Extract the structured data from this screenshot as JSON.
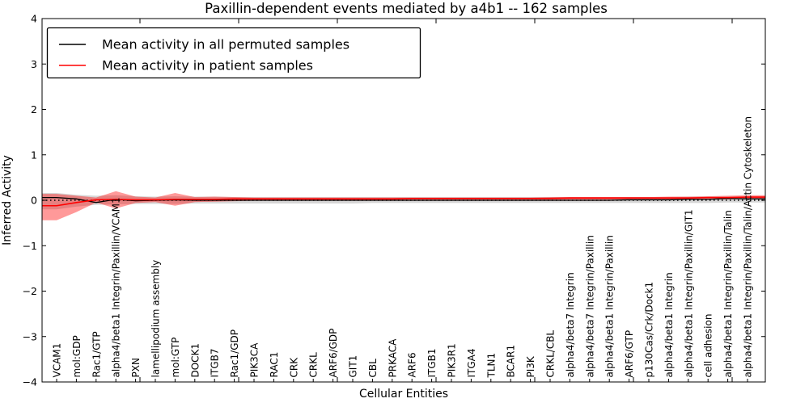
{
  "title": "Paxillin-dependent events mediated by a4b1 -- 162 samples",
  "axes": {
    "xlabel": "Cellular Entities",
    "ylabel": "Inferred Activity",
    "ytick_labels": [
      "4",
      "3",
      "2",
      "1",
      "0",
      "−1",
      "−2",
      "−3",
      "−4"
    ],
    "ytick_values": [
      4,
      3,
      2,
      1,
      0,
      -1,
      -2,
      -3,
      -4
    ]
  },
  "legend": {
    "entries": [
      {
        "label": "Mean activity in all permuted samples",
        "color": "#000000"
      },
      {
        "label": "Mean activity in patient samples",
        "color": "#ff0000"
      }
    ]
  },
  "colors": {
    "background": "#ffffff",
    "spine": "#000000",
    "permuted_line": "#000000",
    "patient_line": "#ff0000",
    "permuted_band": "rgba(0,0,0,0.16)",
    "patient_band": "rgba(255,0,0,0.40)",
    "zero_line": "#000000"
  },
  "chart_data": {
    "type": "line",
    "title": "Paxillin-dependent events mediated by a4b1 -- 162 samples",
    "xlabel": "Cellular Entities",
    "ylabel": "Inferred Activity",
    "ylim": [
      -4,
      4
    ],
    "grid": false,
    "legend_position": "upper left",
    "zero_line": true,
    "categories": [
      "VCAM1",
      "mol:GDP",
      "Rac1/GTP",
      "alpha4/beta1 Integrin/Paxillin/VCAM1",
      "PXN",
      "lamellipodium assembly",
      "mol:GTP",
      "DOCK1",
      "ITGB7",
      "Rac1/GDP",
      "PIK3CA",
      "RAC1",
      "CRK",
      "CRKL",
      "ARF6/GDP",
      "GIT1",
      "CBL",
      "PRKACA",
      "ARF6",
      "ITGB1",
      "PIK3R1",
      "ITGA4",
      "TLN1",
      "BCAR1",
      "PI3K",
      "CRKL/CBL",
      "alpha4/beta7 Integrin",
      "alpha4/beta7 Integrin/Paxillin",
      "alpha4/beta1 Integrin/Paxillin",
      "ARF6/GTP",
      "p130Cas/Crk/Dock1",
      "alpha4/beta1 Integrin",
      "alpha4/beta1 Integrin/Paxillin/GIT1",
      "cell adhesion",
      "alpha4/beta1 Integrin/Paxillin/Talin",
      "alpha4/beta1 Integrin/Paxillin/Talin/Actin Cytoskeleton"
    ],
    "series": [
      {
        "name": "Mean activity in all permuted samples",
        "color": "#000000",
        "values": [
          0.06,
          0.03,
          -0.05,
          0.02,
          -0.01,
          0.0,
          0.01,
          0.0,
          0.0,
          0.0,
          0.0,
          0.0,
          0.0,
          0.0,
          0.0,
          0.0,
          0.0,
          0.0,
          0.0,
          0.0,
          0.0,
          0.0,
          0.0,
          0.0,
          0.0,
          0.0,
          0.0,
          0.0,
          0.0,
          0.01,
          0.01,
          0.01,
          0.02,
          0.02,
          0.04,
          0.03
        ]
      },
      {
        "name": "Mean activity in patient samples",
        "color": "#ff0000",
        "values": [
          -0.12,
          -0.05,
          0.01,
          0.02,
          0.01,
          0.01,
          0.02,
          0.02,
          0.02,
          0.03,
          0.03,
          0.03,
          0.03,
          0.03,
          0.03,
          0.03,
          0.03,
          0.03,
          0.04,
          0.04,
          0.04,
          0.04,
          0.04,
          0.04,
          0.04,
          0.04,
          0.05,
          0.05,
          0.05,
          0.05,
          0.05,
          0.05,
          0.05,
          0.06,
          0.06,
          0.07
        ]
      }
    ],
    "bands": [
      {
        "name": "permuted-samples-range",
        "color": "rgba(0,0,0,0.16)",
        "upper": [
          0.16,
          0.12,
          0.1,
          0.11,
          0.09,
          0.08,
          0.09,
          0.08,
          0.08,
          0.07,
          0.07,
          0.07,
          0.07,
          0.07,
          0.07,
          0.07,
          0.07,
          0.07,
          0.07,
          0.07,
          0.07,
          0.07,
          0.07,
          0.07,
          0.07,
          0.07,
          0.07,
          0.07,
          0.07,
          0.07,
          0.07,
          0.07,
          0.08,
          0.08,
          0.08,
          0.08
        ],
        "lower": [
          -0.2,
          -0.14,
          -0.1,
          -0.09,
          -0.08,
          -0.08,
          -0.08,
          -0.07,
          -0.07,
          -0.07,
          -0.07,
          -0.07,
          -0.07,
          -0.07,
          -0.07,
          -0.07,
          -0.06,
          -0.06,
          -0.06,
          -0.06,
          -0.06,
          -0.06,
          -0.06,
          -0.06,
          -0.06,
          -0.06,
          -0.06,
          -0.06,
          -0.06,
          -0.06,
          -0.06,
          -0.06,
          -0.06,
          -0.06,
          -0.05,
          -0.05
        ]
      },
      {
        "name": "patient-samples-range",
        "color": "rgba(255,0,0,0.40)",
        "upper": [
          0.14,
          0.1,
          0.06,
          0.2,
          0.08,
          0.06,
          0.16,
          0.07,
          0.08,
          0.07,
          0.06,
          0.06,
          0.06,
          0.06,
          0.06,
          0.06,
          0.06,
          0.06,
          0.06,
          0.06,
          0.06,
          0.06,
          0.06,
          0.06,
          0.06,
          0.07,
          0.07,
          0.07,
          0.07,
          0.07,
          0.07,
          0.08,
          0.08,
          0.09,
          0.1,
          0.11
        ],
        "lower": [
          -0.44,
          -0.26,
          -0.05,
          -0.18,
          -0.06,
          -0.04,
          -0.12,
          -0.04,
          -0.03,
          -0.02,
          -0.01,
          -0.01,
          -0.01,
          -0.01,
          0.0,
          0.0,
          0.0,
          0.0,
          0.0,
          0.0,
          0.0,
          0.01,
          0.01,
          0.01,
          0.01,
          0.01,
          0.01,
          0.01,
          0.01,
          0.02,
          0.02,
          0.02,
          0.02,
          0.02,
          0.02,
          0.03
        ]
      }
    ]
  }
}
